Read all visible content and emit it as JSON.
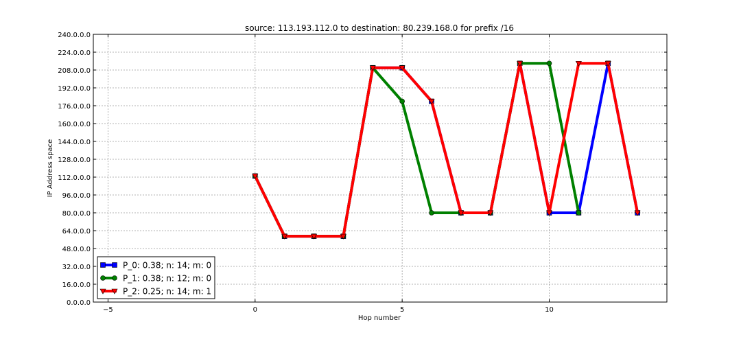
{
  "chart_data": {
    "type": "line",
    "title": "source: 113.193.112.0 to destination: 80.239.168.0 for prefix /16",
    "xlabel": "Hop number",
    "ylabel": "IP Address space",
    "xlim": [
      -5.5,
      14
    ],
    "ylim": [
      0,
      240
    ],
    "xticks": [
      -5,
      0,
      5,
      10
    ],
    "yticks": [
      0,
      16,
      32,
      48,
      64,
      80,
      96,
      112,
      128,
      144,
      160,
      176,
      192,
      208,
      224,
      240
    ],
    "ytick_labels": [
      "0.0.0.0",
      "16.0.0.0",
      "32.0.0.0",
      "48.0.0.0",
      "64.0.0.0",
      "80.0.0.0",
      "96.0.0.0",
      "112.0.0.0",
      "128.0.0.0",
      "144.0.0.0",
      "160.0.0.0",
      "176.0.0.0",
      "192.0.0.0",
      "208.0.0.0",
      "224.0.0.0",
      "240.0.0.0"
    ],
    "grid": true,
    "legend_position": "bottom-left",
    "series": [
      {
        "name": "P_0: 0.38; n: 14; m: 0",
        "color": "#0000ff",
        "marker": "square",
        "x": [
          0,
          1,
          2,
          3,
          4,
          5,
          6,
          7,
          8,
          9,
          10,
          11,
          12,
          13
        ],
        "y": [
          113,
          59,
          59,
          59,
          210,
          210,
          180,
          80,
          80,
          214,
          80,
          80,
          214,
          80
        ]
      },
      {
        "name": "P_1: 0.38; n: 12; m: 0",
        "color": "#008000",
        "marker": "circle",
        "x": [
          0,
          1,
          2,
          3,
          4,
          5,
          6,
          7,
          8,
          9,
          10,
          11
        ],
        "y": [
          113,
          59,
          59,
          59,
          210,
          180,
          80,
          80,
          80,
          214,
          214,
          80
        ]
      },
      {
        "name": "P_2: 0.25; n: 14; m: 1",
        "color": "#ff0000",
        "marker": "triangle-down",
        "x": [
          0,
          1,
          2,
          3,
          4,
          5,
          6,
          7,
          8,
          9,
          10,
          11,
          12,
          13
        ],
        "y": [
          113,
          59,
          59,
          59,
          210,
          210,
          180,
          80,
          80,
          214,
          80,
          214,
          214,
          80
        ]
      }
    ]
  }
}
